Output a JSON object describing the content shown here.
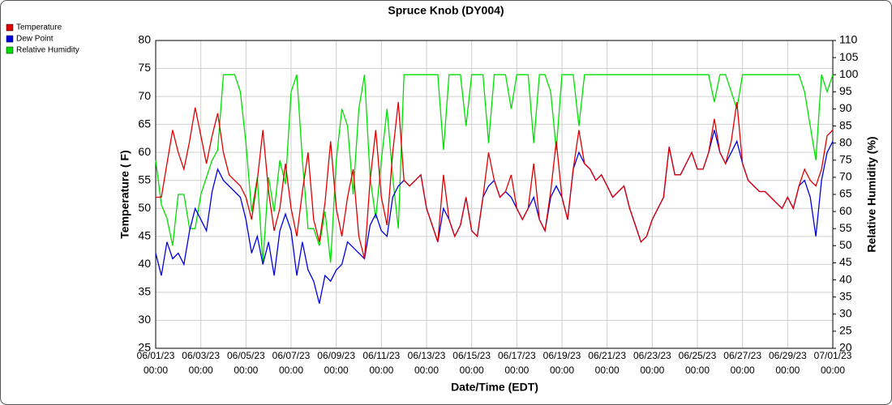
{
  "chart_data": {
    "type": "line",
    "title": "Spruce Knob (DY004)",
    "x_label": "Date/Time (EDT)",
    "y_label": "Temperature ( F)",
    "y2_label": "Relative Humidity (%)",
    "x": [
      "06/01/23 00:00",
      "06/01/23 06:00",
      "06/01/23 12:00",
      "06/01/23 18:00",
      "06/02/23 00:00",
      "06/02/23 06:00",
      "06/02/23 12:00",
      "06/02/23 18:00",
      "06/03/23 00:00",
      "06/03/23 06:00",
      "06/03/23 12:00",
      "06/03/23 18:00",
      "06/04/23 00:00",
      "06/04/23 06:00",
      "06/04/23 12:00",
      "06/04/23 18:00",
      "06/05/23 00:00",
      "06/05/23 06:00",
      "06/05/23 12:00",
      "06/05/23 18:00",
      "06/06/23 00:00",
      "06/06/23 06:00",
      "06/06/23 12:00",
      "06/06/23 18:00",
      "06/07/23 00:00",
      "06/07/23 06:00",
      "06/07/23 12:00",
      "06/07/23 18:00",
      "06/08/23 00:00",
      "06/08/23 06:00",
      "06/08/23 12:00",
      "06/08/23 18:00",
      "06/09/23 00:00",
      "06/09/23 06:00",
      "06/09/23 12:00",
      "06/09/23 18:00",
      "06/10/23 00:00",
      "06/10/23 06:00",
      "06/10/23 12:00",
      "06/10/23 18:00",
      "06/11/23 00:00",
      "06/11/23 06:00",
      "06/11/23 12:00",
      "06/11/23 18:00",
      "06/12/23 00:00",
      "06/12/23 06:00",
      "06/12/23 12:00",
      "06/12/23 18:00",
      "06/13/23 00:00",
      "06/13/23 06:00",
      "06/13/23 12:00",
      "06/13/23 18:00",
      "06/14/23 00:00",
      "06/14/23 06:00",
      "06/14/23 12:00",
      "06/14/23 18:00",
      "06/15/23 00:00",
      "06/15/23 06:00",
      "06/15/23 12:00",
      "06/15/23 18:00",
      "06/16/23 00:00",
      "06/16/23 06:00",
      "06/16/23 12:00",
      "06/16/23 18:00",
      "06/17/23 00:00",
      "06/17/23 06:00",
      "06/17/23 12:00",
      "06/17/23 18:00",
      "06/18/23 00:00",
      "06/18/23 06:00",
      "06/18/23 12:00",
      "06/18/23 18:00",
      "06/19/23 00:00",
      "06/19/23 06:00",
      "06/19/23 12:00",
      "06/19/23 18:00",
      "06/20/23 00:00",
      "06/20/23 06:00",
      "06/20/23 12:00",
      "06/20/23 18:00",
      "06/21/23 00:00",
      "06/21/23 06:00",
      "06/21/23 12:00",
      "06/21/23 18:00",
      "06/22/23 00:00",
      "06/22/23 06:00",
      "06/22/23 12:00",
      "06/22/23 18:00",
      "06/23/23 00:00",
      "06/23/23 06:00",
      "06/23/23 12:00",
      "06/23/23 18:00",
      "06/24/23 00:00",
      "06/24/23 06:00",
      "06/24/23 12:00",
      "06/24/23 18:00",
      "06/25/23 00:00",
      "06/25/23 06:00",
      "06/25/23 12:00",
      "06/25/23 18:00",
      "06/26/23 00:00",
      "06/26/23 06:00",
      "06/26/23 12:00",
      "06/26/23 18:00",
      "06/27/23 00:00",
      "06/27/23 06:00",
      "06/27/23 12:00",
      "06/27/23 18:00",
      "06/28/23 00:00",
      "06/28/23 06:00",
      "06/28/23 12:00",
      "06/28/23 18:00",
      "06/29/23 00:00",
      "06/29/23 06:00",
      "06/29/23 12:00",
      "06/29/23 18:00",
      "06/30/23 00:00",
      "06/30/23 06:00",
      "06/30/23 12:00",
      "06/30/23 18:00",
      "07/01/23 00:00"
    ],
    "series": [
      {
        "name": "Temperature",
        "color": "#e00000",
        "values": [
          52,
          52,
          58,
          64,
          60,
          57,
          62,
          68,
          63,
          58,
          63,
          67,
          60,
          56,
          55,
          54,
          52,
          48,
          55,
          64,
          53,
          46,
          50,
          58,
          50,
          45,
          53,
          60,
          48,
          44,
          51,
          62,
          50,
          45,
          52,
          57,
          45,
          41,
          55,
          64,
          52,
          47,
          60,
          69,
          55,
          54,
          55,
          56,
          50,
          47,
          44,
          56,
          48,
          45,
          47,
          52,
          46,
          45,
          52,
          60,
          55,
          52,
          53,
          56,
          50,
          48,
          50,
          58,
          48,
          46,
          53,
          62,
          52,
          48,
          57,
          64,
          58,
          57,
          55,
          56,
          54,
          52,
          53,
          54,
          50,
          47,
          44,
          45,
          48,
          50,
          52,
          61,
          56,
          56,
          58,
          60,
          57,
          57,
          60,
          66,
          60,
          58,
          62,
          69,
          58,
          55,
          54,
          53,
          53,
          52,
          51,
          50,
          52,
          50,
          54,
          57,
          55,
          54,
          57,
          63,
          64
        ]
      },
      {
        "name": "Dew Point",
        "color": "#0000e0",
        "values": [
          42,
          38,
          44,
          41,
          42,
          40,
          46,
          50,
          48,
          46,
          53,
          57,
          55,
          54,
          53,
          52,
          48,
          42,
          45,
          40,
          44,
          38,
          46,
          49,
          46,
          38,
          44,
          39,
          37,
          33,
          38,
          37,
          39,
          40,
          44,
          43,
          42,
          41,
          47,
          49,
          46,
          45,
          52,
          54,
          55,
          54,
          55,
          56,
          50,
          47,
          44,
          50,
          48,
          45,
          47,
          52,
          46,
          45,
          52,
          54,
          55,
          52,
          53,
          52,
          50,
          48,
          50,
          52,
          48,
          46,
          52,
          54,
          52,
          48,
          57,
          60,
          58,
          57,
          55,
          56,
          54,
          52,
          53,
          54,
          50,
          47,
          44,
          45,
          48,
          50,
          52,
          61,
          56,
          56,
          58,
          60,
          57,
          57,
          60,
          64,
          60,
          58,
          60,
          62,
          58,
          55,
          54,
          53,
          53,
          52,
          51,
          50,
          52,
          50,
          54,
          55,
          52,
          45,
          55,
          60,
          62
        ]
      },
      {
        "name": "Relative Humidity",
        "color": "#00e000",
        "axis": "y2",
        "values": [
          75,
          62,
          58,
          50,
          65,
          65,
          55,
          55,
          65,
          70,
          75,
          78,
          100,
          100,
          100,
          95,
          80,
          60,
          70,
          45,
          70,
          60,
          75,
          68,
          95,
          100,
          75,
          55,
          55,
          50,
          60,
          45,
          75,
          90,
          85,
          65,
          90,
          100,
          70,
          58,
          75,
          90,
          70,
          55,
          100,
          100,
          100,
          100,
          100,
          100,
          100,
          78,
          100,
          100,
          100,
          85,
          100,
          100,
          100,
          80,
          100,
          100,
          100,
          90,
          100,
          100,
          100,
          80,
          100,
          100,
          95,
          78,
          100,
          100,
          100,
          85,
          100,
          100,
          100,
          100,
          100,
          100,
          100,
          100,
          100,
          100,
          100,
          100,
          100,
          100,
          100,
          100,
          100,
          100,
          100,
          100,
          100,
          100,
          100,
          92,
          100,
          100,
          95,
          90,
          100,
          100,
          100,
          100,
          100,
          100,
          100,
          100,
          100,
          100,
          100,
          95,
          85,
          75,
          100,
          95,
          100
        ]
      }
    ],
    "xlim": [
      "06/01/23 00:00",
      "07/01/23 00:00"
    ],
    "xticks": [
      "06/01/23 00:00",
      "06/03/23 00:00",
      "06/05/23 00:00",
      "06/07/23 00:00",
      "06/09/23 00:00",
      "06/11/23 00:00",
      "06/13/23 00:00",
      "06/15/23 00:00",
      "06/17/23 00:00",
      "06/19/23 00:00",
      "06/21/23 00:00",
      "06/23/23 00:00",
      "06/25/23 00:00",
      "06/27/23 00:00",
      "06/29/23 00:00",
      "07/01/23 00:00"
    ],
    "ylim": [
      25,
      80
    ],
    "yticks": [
      25,
      30,
      35,
      40,
      45,
      50,
      55,
      60,
      65,
      70,
      75,
      80
    ],
    "y2lim": [
      20,
      110
    ],
    "y2ticks": [
      20,
      25,
      30,
      35,
      40,
      45,
      50,
      55,
      60,
      65,
      70,
      75,
      80,
      85,
      90,
      95,
      100,
      105,
      110
    ],
    "grid": true
  }
}
